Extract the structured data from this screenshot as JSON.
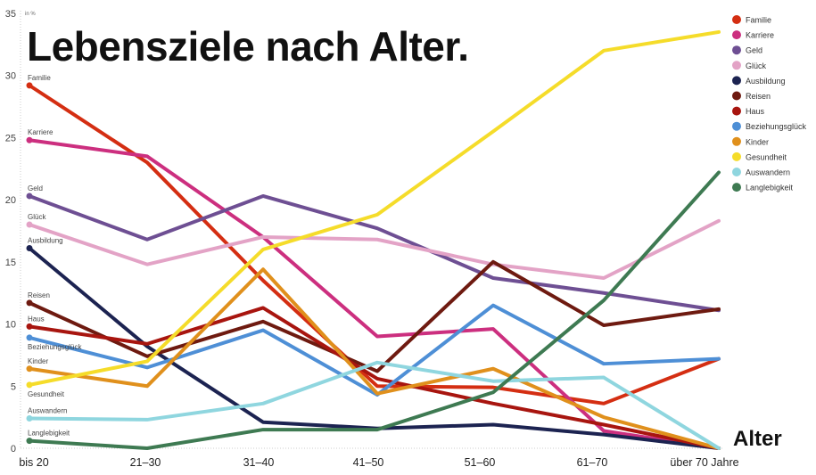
{
  "chart_data": {
    "type": "line",
    "title": "Lebensziele nach Alter.",
    "xlabel": "Alter",
    "ylabel": "in %",
    "ylim": [
      0,
      35
    ],
    "yticks": [
      0,
      5,
      10,
      15,
      20,
      25,
      30,
      35
    ],
    "grid": false,
    "legend_position": "top-right",
    "categories": [
      "bis 20",
      "21–30",
      "31–40",
      "41–50",
      "51–60",
      "61–70",
      "über 70 Jahre"
    ],
    "series": [
      {
        "name": "Familie",
        "color": "#d42e12",
        "values": [
          29.2,
          23.0,
          13.5,
          5.0,
          4.9,
          3.6,
          7.2
        ]
      },
      {
        "name": "Karriere",
        "color": "#cc2f7f",
        "values": [
          24.8,
          23.5,
          17.0,
          9.0,
          9.6,
          1.4,
          0
        ]
      },
      {
        "name": "Geld",
        "color": "#6e4f93",
        "values": [
          20.3,
          16.8,
          20.3,
          17.7,
          13.7,
          12.5,
          11.1
        ]
      },
      {
        "name": "Glück",
        "color": "#e3a3c6",
        "values": [
          18.0,
          14.8,
          17.0,
          16.8,
          14.8,
          13.7,
          18.3
        ]
      },
      {
        "name": "Ausbildung",
        "color": "#1c2351",
        "values": [
          16.1,
          8.2,
          2.1,
          1.6,
          1.9,
          1.1,
          0
        ]
      },
      {
        "name": "Reisen",
        "color": "#6e1a10",
        "values": [
          11.7,
          7.4,
          10.2,
          6.2,
          15.0,
          9.9,
          11.2
        ]
      },
      {
        "name": "Haus",
        "color": "#a8150f",
        "values": [
          9.8,
          8.4,
          11.3,
          5.6,
          3.6,
          1.9,
          0
        ]
      },
      {
        "name": "Beziehungsglück",
        "color": "#4e8fd6",
        "values": [
          8.9,
          6.5,
          9.5,
          4.3,
          11.5,
          6.8,
          7.2
        ]
      },
      {
        "name": "Kinder",
        "color": "#e0901c",
        "values": [
          6.4,
          5.0,
          14.4,
          4.4,
          6.4,
          2.5,
          0
        ]
      },
      {
        "name": "Gesundheit",
        "color": "#f5dc2a",
        "values": [
          5.1,
          7.0,
          16.0,
          18.8,
          25.5,
          32.0,
          33.5
        ]
      },
      {
        "name": "Auswandern",
        "color": "#8fd6df",
        "values": [
          2.4,
          2.3,
          3.6,
          6.9,
          5.4,
          5.7,
          0
        ]
      },
      {
        "name": "Langlebigkeit",
        "color": "#3e7a52",
        "values": [
          0.6,
          0,
          1.5,
          1.5,
          4.5,
          11.9,
          22.2
        ]
      }
    ]
  }
}
